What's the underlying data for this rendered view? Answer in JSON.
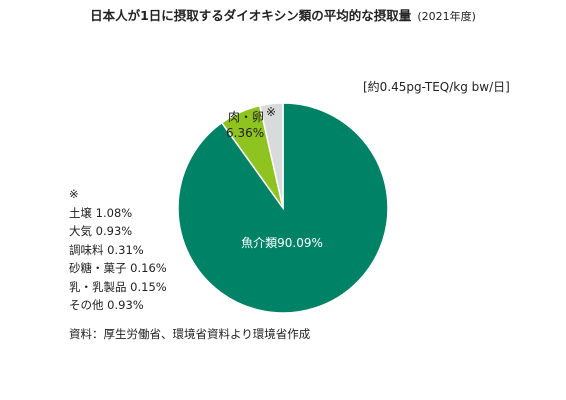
{
  "chart_data": {
    "type": "pie",
    "title": "日本人が1日に摂取するダイオキシン類の平均的な摂取量",
    "subtitle": "(2021年度)",
    "unit_label": "[約0.45pg-TEQ/kg bw/日]",
    "slices": [
      {
        "label": "魚介類",
        "value_text": "90.09%",
        "value": 90.09,
        "color": "#008266"
      },
      {
        "label": "肉・卵",
        "value_text": "6.36%",
        "value": 6.36,
        "color": "#8fc31f"
      },
      {
        "label": "※",
        "value_text": "",
        "value": 3.55,
        "color": "#d9dadb"
      }
    ],
    "others": {
      "marker": "※",
      "items": [
        {
          "label": "土壌",
          "value": "1.08%"
        },
        {
          "label": "大気",
          "value": "0.93%"
        },
        {
          "label": "調味料",
          "value": "0.31%"
        },
        {
          "label": "砂糖・菓子",
          "value": "0.16%"
        },
        {
          "label": "乳・乳製品",
          "value": "0.15%"
        },
        {
          "label": "その他",
          "value": "0.93%"
        }
      ]
    },
    "source": "資料：厚生労働省、環境省資料より環境省作成"
  }
}
